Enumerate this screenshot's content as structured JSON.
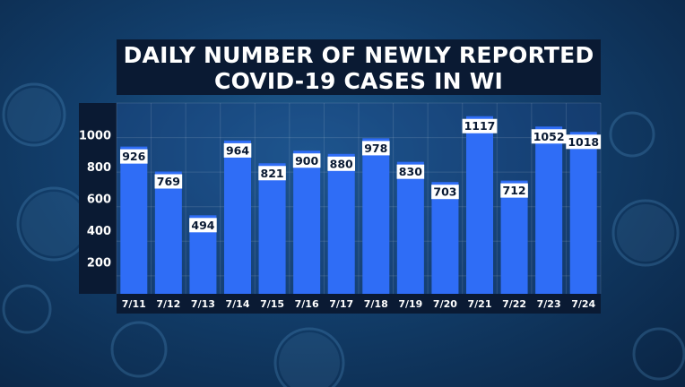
{
  "chart_data": {
    "type": "bar",
    "title_lines": [
      "DAILY NUMBER OF NEWLY REPORTED",
      "COVID-19 CASES IN WI"
    ],
    "categories": [
      "7/11",
      "7/12",
      "7/13",
      "7/14",
      "7/15",
      "7/16",
      "7/17",
      "7/18",
      "7/19",
      "7/20",
      "7/21",
      "7/22",
      "7/23",
      "7/24"
    ],
    "values": [
      926,
      769,
      494,
      964,
      821,
      900,
      880,
      978,
      830,
      703,
      1117,
      712,
      1052,
      1018
    ],
    "ytick_labels": [
      "200",
      "400",
      "600",
      "800",
      "1000"
    ],
    "yticks": [
      200,
      400,
      600,
      800,
      1000
    ],
    "ylim": [
      0,
      1200
    ],
    "grid": true,
    "bar_color": "#2f6df6",
    "label_bg_color": "#ffffff",
    "label_text_color": "#0a1a33"
  }
}
